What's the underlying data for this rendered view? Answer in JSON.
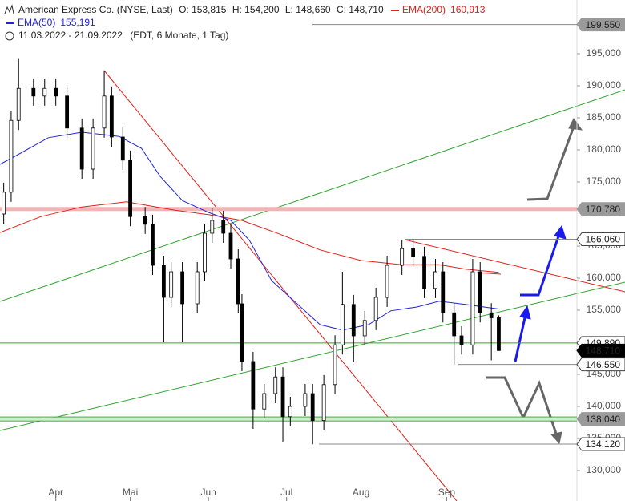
{
  "chart_data": {
    "type": "candlestick",
    "title": "American Express Co. (NYSE, Last)",
    "header_values": [
      "O: 153,815",
      "H: 154,200",
      "L: 148,660",
      "C: 148,710"
    ],
    "date_range": "11.03.2022 - 21.09.2022",
    "date_note": "(EDT, 6 Monate, 1 Tag)",
    "xlim": [
      0,
      155
    ],
    "xticks": [
      {
        "value": 15,
        "label": "Apr"
      },
      {
        "value": 35,
        "label": "Mai"
      },
      {
        "value": 56,
        "label": "Jun"
      },
      {
        "value": 77,
        "label": "Jul"
      },
      {
        "value": 97,
        "label": "Aug"
      },
      {
        "value": 120,
        "label": "Sep"
      }
    ],
    "ylim": [
      125250,
      199875
    ],
    "yticks": [
      {
        "value": 130000,
        "label": "130,000"
      },
      {
        "value": 135000,
        "label": "135,000"
      },
      {
        "value": 140000,
        "label": "140,000"
      },
      {
        "value": 145000,
        "label": "145,000"
      },
      {
        "value": 155000,
        "label": "155,000"
      },
      {
        "value": 160000,
        "label": "160,000"
      },
      {
        "value": 165000,
        "label": "165,000"
      },
      {
        "value": 175000,
        "label": "175,000"
      },
      {
        "value": 180000,
        "label": "180,000"
      },
      {
        "value": 185000,
        "label": "185,000"
      },
      {
        "value": 190000,
        "label": "190,000"
      },
      {
        "value": 195000,
        "label": "195,000"
      }
    ],
    "x": [
      1,
      3,
      5,
      9,
      12,
      15,
      18,
      22,
      25,
      28,
      30,
      33,
      35,
      39,
      41,
      44,
      46,
      49,
      53,
      55,
      57,
      60,
      62,
      64,
      65,
      68,
      71,
      74,
      76,
      78,
      82,
      84,
      87,
      90,
      92,
      95,
      98,
      101,
      104,
      108,
      111,
      114,
      117,
      119,
      122,
      124,
      127,
      129,
      132,
      134
    ],
    "open": [
      170000,
      173400,
      184600,
      189600,
      188400,
      189600,
      188400,
      183400,
      177000,
      183400,
      188400,
      182000,
      178400,
      169600,
      168400,
      162000,
      157000,
      161000,
      156000,
      161000,
      167000,
      169000,
      167000,
      163000,
      156000,
      147000,
      139600,
      142000,
      144600,
      138400,
      140000,
      142000,
      137800,
      143400,
      149600,
      155900,
      151000,
      153400,
      157000,
      162000,
      164600,
      163400,
      158400,
      161000,
      154600,
      151000,
      149600,
      161000,
      154600,
      153815
    ],
    "high": [
      174900,
      186100,
      194300,
      191100,
      191100,
      191100,
      189900,
      184900,
      184900,
      192400,
      189900,
      183500,
      179900,
      171100,
      169900,
      163500,
      162500,
      162500,
      162500,
      168500,
      170900,
      170500,
      168500,
      164500,
      157500,
      148500,
      143500,
      146100,
      146100,
      141500,
      143500,
      143500,
      144900,
      151100,
      161000,
      157400,
      154900,
      158500,
      163500,
      165900,
      166100,
      164900,
      163000,
      162500,
      156100,
      152500,
      163000,
      162500,
      156100,
      154200
    ],
    "low": [
      168500,
      171900,
      183100,
      186900,
      186900,
      186900,
      181900,
      175500,
      175500,
      181900,
      180500,
      176900,
      168100,
      166900,
      160500,
      150000,
      155500,
      150000,
      154500,
      159500,
      165500,
      165500,
      161500,
      154500,
      145500,
      136500,
      138100,
      140500,
      134500,
      136900,
      138500,
      134100,
      136300,
      141900,
      148100,
      147000,
      149500,
      151900,
      155500,
      160500,
      161900,
      156900,
      156900,
      153100,
      146550,
      148100,
      148100,
      153100,
      147200,
      148660
    ],
    "close": [
      173400,
      184600,
      189600,
      188400,
      189600,
      188400,
      183400,
      177000,
      183400,
      188400,
      182000,
      178400,
      169600,
      168400,
      162000,
      157000,
      161000,
      156000,
      161000,
      167000,
      169000,
      167000,
      163000,
      156000,
      147000,
      139600,
      142000,
      144600,
      138400,
      140000,
      142000,
      137800,
      143400,
      149600,
      155900,
      151000,
      153400,
      157000,
      162000,
      164600,
      163400,
      158400,
      161000,
      154600,
      151000,
      149600,
      161000,
      154600,
      153815,
      148710
    ],
    "series": [
      {
        "name": "EMA(200)",
        "color": "#e0201a",
        "last_value_label": "160,913",
        "x": [
          0,
          11,
          22,
          34,
          47,
          56,
          65,
          75,
          86,
          97,
          108,
          118,
          125,
          134
        ],
        "values": [
          167100,
          169600,
          171100,
          171900,
          170600,
          169900,
          169000,
          166900,
          164400,
          162750,
          162100,
          162100,
          161400,
          160913
        ]
      },
      {
        "name": "EMA(50)",
        "color": "#2222dd",
        "last_value_label": "155,191",
        "x": [
          0,
          4,
          13,
          22,
          32,
          38,
          43,
          49,
          56,
          62,
          67,
          73,
          80,
          86,
          92,
          99,
          105,
          112,
          118,
          125,
          130,
          134
        ],
        "values": [
          177750,
          179000,
          181900,
          182750,
          182100,
          180250,
          175900,
          172100,
          170250,
          169000,
          165900,
          159600,
          155900,
          152750,
          151900,
          152750,
          154900,
          155500,
          156400,
          155900,
          155500,
          155191
        ]
      }
    ],
    "price_labels": [
      {
        "value": 199550,
        "label": "199,550",
        "style": "gray"
      },
      {
        "value": 170780,
        "label": "170,780",
        "style": "gray"
      },
      {
        "value": 166060,
        "label": "166,060",
        "style": "outline"
      },
      {
        "value": 149890,
        "label": "149,890",
        "style": "outline"
      },
      {
        "value": 148710,
        "label": "148,710",
        "style": "dark"
      },
      {
        "value": 146550,
        "label": "146,550",
        "style": "outline"
      },
      {
        "value": 138040,
        "label": "138,040",
        "style": "gray"
      },
      {
        "value": 134120,
        "label": "134,120",
        "style": "outline"
      }
    ]
  }
}
